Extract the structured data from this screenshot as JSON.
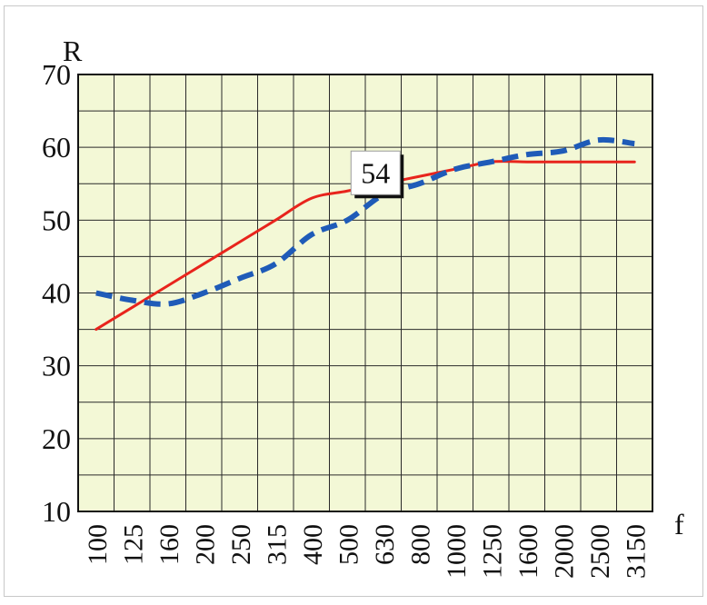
{
  "chart_data": {
    "type": "line",
    "xlabel": "f",
    "ylabel": "R",
    "categories": [
      "100",
      "125",
      "160",
      "200",
      "250",
      "315",
      "400",
      "500",
      "630",
      "800",
      "1000",
      "1250",
      "1600",
      "2000",
      "2500",
      "3150"
    ],
    "ylim": [
      10,
      70
    ],
    "yticks": [
      10,
      20,
      30,
      40,
      50,
      60,
      70
    ],
    "grid": true,
    "plot_background": "#f3f8d6",
    "series": [
      {
        "color": "#e8241c",
        "style": "solid",
        "values": [
          35,
          38,
          41,
          44,
          47,
          50,
          53,
          54,
          55,
          56,
          57,
          58,
          58,
          58,
          58,
          58
        ]
      },
      {
        "color": "#1f5bb8",
        "style": "dashed",
        "values": [
          40,
          39,
          38.5,
          40,
          42,
          44,
          48,
          50,
          53.5,
          55,
          57,
          58,
          59,
          59.5,
          61,
          60.5
        ]
      }
    ],
    "annotations": [
      {
        "text": "54",
        "category": "500",
        "value": 54
      }
    ]
  }
}
